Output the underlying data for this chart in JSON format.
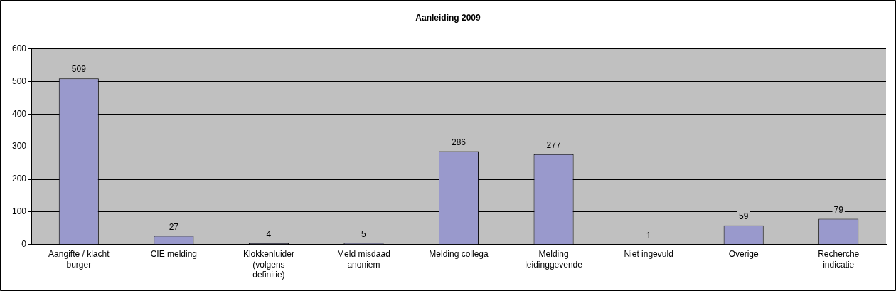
{
  "chart_data": {
    "type": "bar",
    "title": "Aanleiding 2009",
    "categories": [
      "Aangifte / klacht burger",
      "CIE melding",
      "Klokkenluider (volgens definitie)",
      "Meld misdaad anoniem",
      "Melding collega",
      "Melding leidinggevende",
      "Niet ingevuld",
      "Overige",
      "Recherche indicatie"
    ],
    "values": [
      509,
      27,
      4,
      5,
      286,
      277,
      1,
      59,
      79
    ],
    "color": "#9999cc",
    "ylim": [
      0,
      600
    ],
    "yticks": [
      0,
      100,
      200,
      300,
      400,
      500,
      600
    ],
    "grid": "y",
    "data_labels": true
  }
}
